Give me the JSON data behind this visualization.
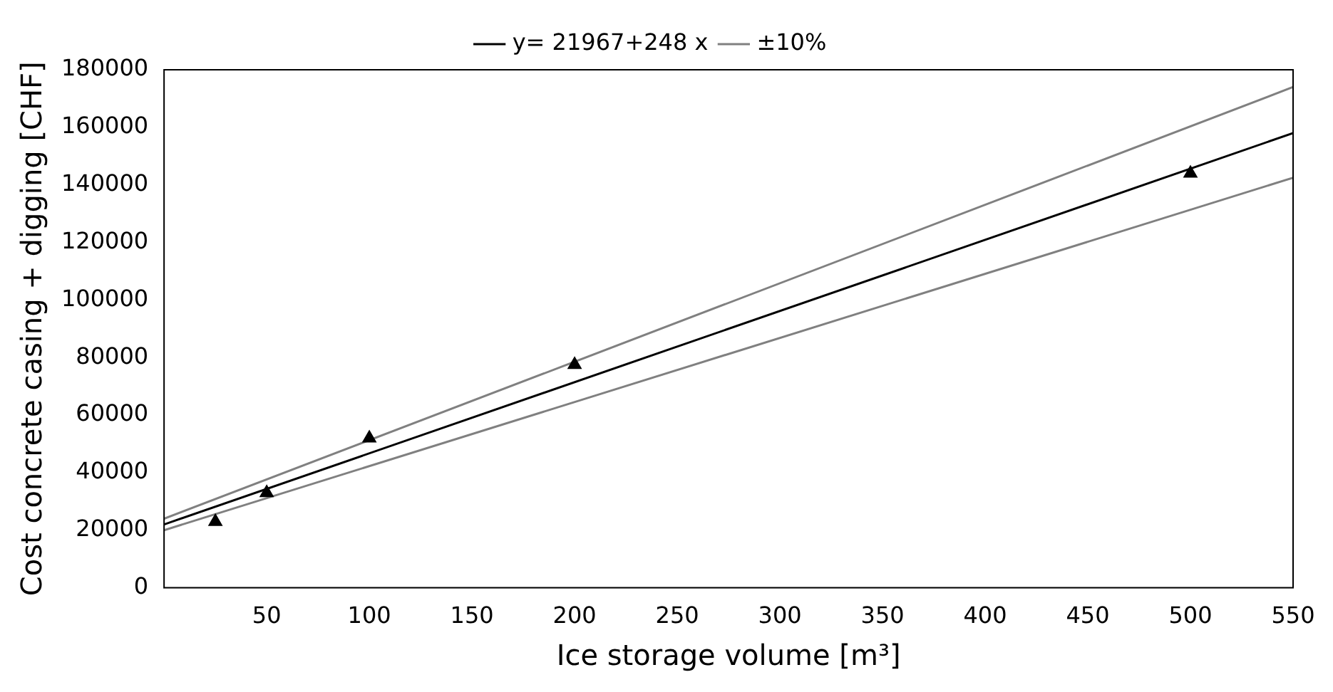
{
  "chart_data": {
    "type": "scatter",
    "xlabel": "Ice storage volume [m³]",
    "ylabel": "Cost concrete casing + digging [CHF]",
    "xlim": [
      0,
      550
    ],
    "xticks": [
      50,
      100,
      150,
      200,
      250,
      300,
      350,
      400,
      450,
      500,
      550
    ],
    "ylim": [
      0,
      180000
    ],
    "yticks": [
      0,
      20000,
      40000,
      60000,
      80000,
      100000,
      120000,
      140000,
      160000,
      180000
    ],
    "grid": false,
    "legend": "top",
    "series": [
      {
        "type": "scatter",
        "color": "#000000",
        "marker": "triangle",
        "x": [
          25,
          50,
          100,
          200,
          500
        ],
        "values": [
          23000,
          33000,
          52000,
          77500,
          144000
        ]
      },
      {
        "type": "line",
        "name": "y= 21967+248 x",
        "color": "#000000",
        "marker": "none",
        "x": [
          0,
          550
        ],
        "values": [
          22000,
          158000
        ]
      },
      {
        "type": "line",
        "name": "±10%",
        "color": "#808080",
        "marker": "none",
        "x": [
          0,
          550
        ],
        "values": [
          24000,
          174000
        ]
      },
      {
        "type": "line",
        "color": "#808080",
        "marker": "none",
        "x": [
          0,
          550
        ],
        "values": [
          20000,
          142500
        ]
      }
    ]
  }
}
